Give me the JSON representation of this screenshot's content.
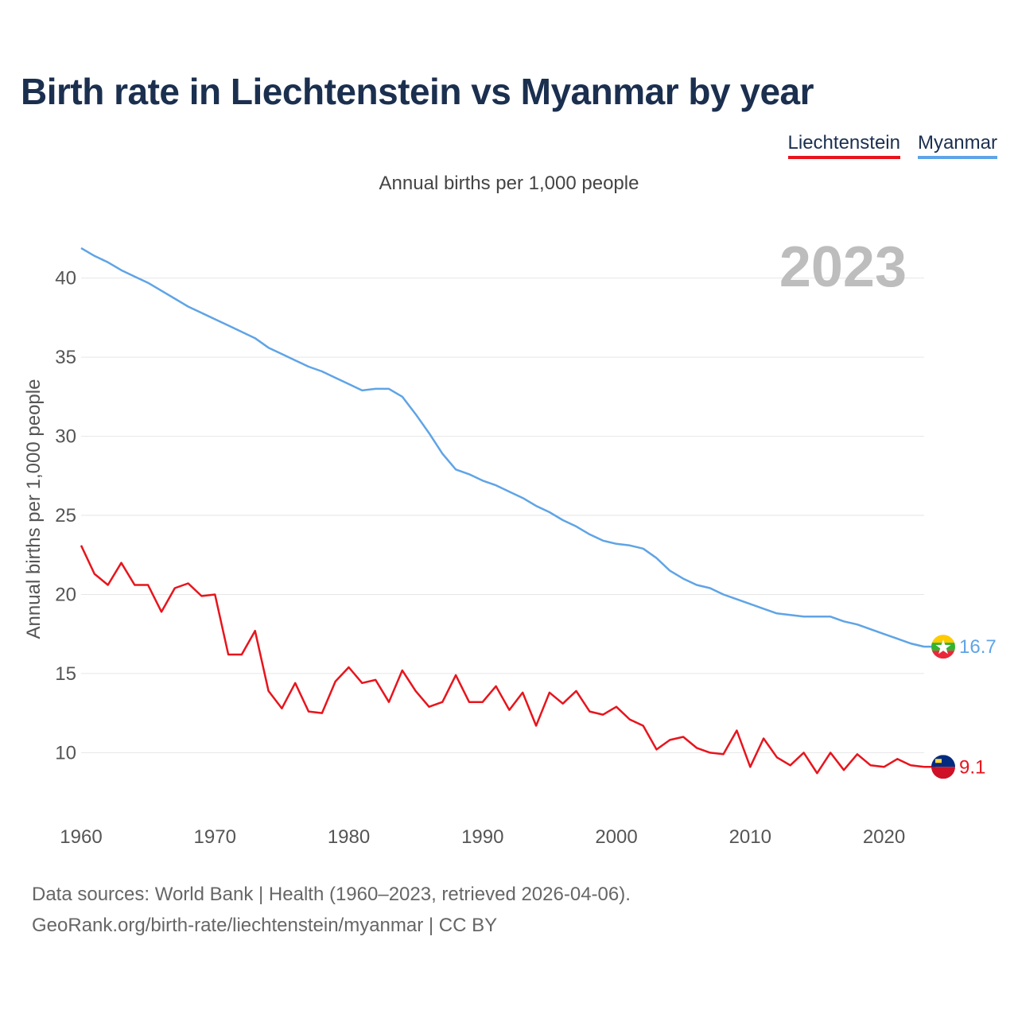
{
  "title": "Birth rate in Liechtenstein vs Myanmar by year",
  "subtitle": "Annual births per 1,000 people",
  "legend": [
    {
      "name": "Liechtenstein",
      "color": "#e8141c"
    },
    {
      "name": "Myanmar",
      "color": "#5fa4e6"
    }
  ],
  "year_badge": "2023",
  "footer": {
    "line1": "Data sources: World Bank | Health (1960–2023, retrieved 2026-04-06).",
    "line2": "GeoRank.org/birth-rate/liechtenstein/myanmar | CC BY"
  },
  "chart_data": {
    "type": "line",
    "title": "Birth rate in Liechtenstein vs Myanmar by year",
    "ylabel": "Annual births per 1,000 people",
    "xlabel": "",
    "xlim": [
      1960,
      2023
    ],
    "ylim": [
      6.8,
      43
    ],
    "xticks": [
      1960,
      1970,
      1980,
      1990,
      2000,
      2010,
      2020
    ],
    "yticks": [
      10,
      15,
      20,
      25,
      30,
      35,
      40
    ],
    "grid": true,
    "x": [
      1960,
      1961,
      1962,
      1963,
      1964,
      1965,
      1966,
      1967,
      1968,
      1969,
      1970,
      1971,
      1972,
      1973,
      1974,
      1975,
      1976,
      1977,
      1978,
      1979,
      1980,
      1981,
      1982,
      1983,
      1984,
      1985,
      1986,
      1987,
      1988,
      1989,
      1990,
      1991,
      1992,
      1993,
      1994,
      1995,
      1996,
      1997,
      1998,
      1999,
      2000,
      2001,
      2002,
      2003,
      2004,
      2005,
      2006,
      2007,
      2008,
      2009,
      2010,
      2011,
      2012,
      2013,
      2014,
      2015,
      2016,
      2017,
      2018,
      2019,
      2020,
      2021,
      2022,
      2023
    ],
    "series": [
      {
        "name": "Myanmar",
        "color": "#5fa4e6",
        "end_label": "16.7",
        "values": [
          41.9,
          41.4,
          41.0,
          40.5,
          40.1,
          39.7,
          39.2,
          38.7,
          38.2,
          37.8,
          37.4,
          37.0,
          36.6,
          36.2,
          35.6,
          35.2,
          34.8,
          34.4,
          34.1,
          33.7,
          33.3,
          32.9,
          33.0,
          33.0,
          32.5,
          31.4,
          30.2,
          28.9,
          27.9,
          27.6,
          27.2,
          26.9,
          26.5,
          26.1,
          25.6,
          25.2,
          24.7,
          24.3,
          23.8,
          23.4,
          23.2,
          23.1,
          22.9,
          22.3,
          21.5,
          21.0,
          20.6,
          20.4,
          20.0,
          19.7,
          19.4,
          19.1,
          18.8,
          18.7,
          18.6,
          18.6,
          18.6,
          18.3,
          18.1,
          17.8,
          17.5,
          17.2,
          16.9,
          16.7
        ]
      },
      {
        "name": "Liechtenstein",
        "color": "#e8141c",
        "end_label": "9.1",
        "values": [
          23.1,
          21.3,
          20.6,
          22.0,
          20.6,
          20.6,
          18.9,
          20.4,
          20.7,
          19.9,
          20.0,
          16.2,
          16.2,
          17.7,
          13.9,
          12.8,
          14.4,
          12.6,
          12.5,
          14.5,
          15.4,
          14.4,
          14.6,
          13.2,
          15.2,
          13.9,
          12.9,
          13.2,
          14.9,
          13.2,
          13.2,
          14.2,
          12.7,
          13.8,
          11.7,
          13.8,
          13.1,
          13.9,
          12.6,
          12.4,
          12.9,
          12.1,
          11.7,
          10.2,
          10.8,
          11.0,
          10.3,
          10.0,
          9.9,
          11.4,
          9.1,
          10.9,
          9.7,
          9.2,
          10.0,
          8.7,
          10.0,
          8.9,
          9.9,
          9.2,
          9.1,
          9.6,
          9.2,
          9.1
        ]
      }
    ]
  }
}
